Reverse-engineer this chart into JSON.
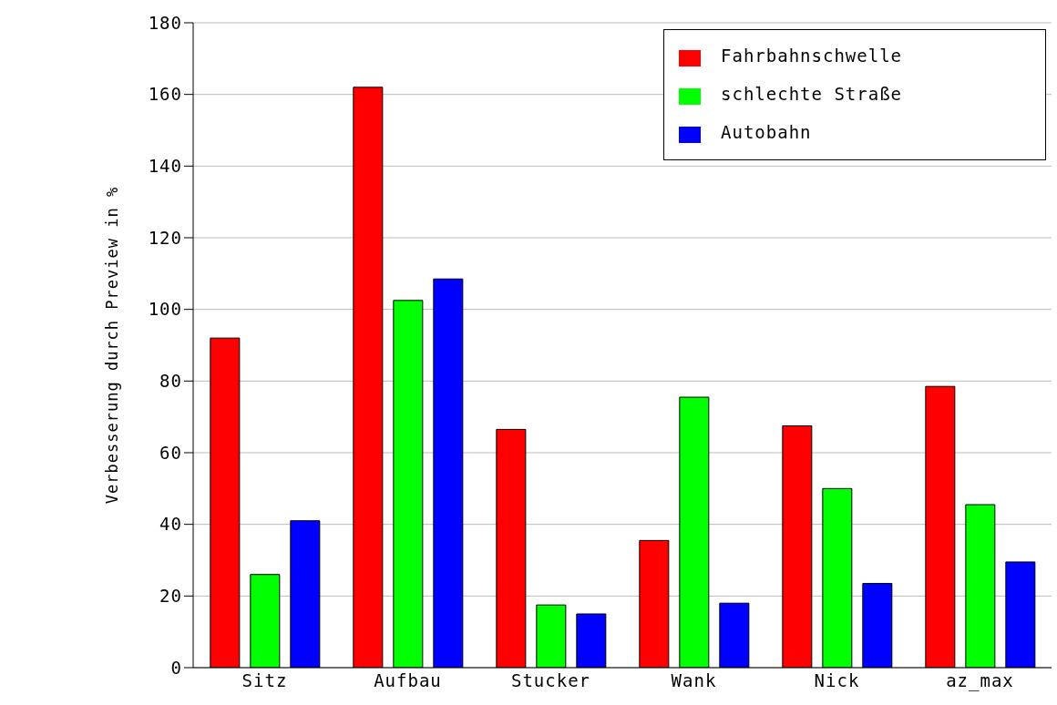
{
  "chart_data": {
    "type": "bar",
    "ylabel": "Verbesserung durch Preview in %",
    "categories": [
      "Sitz",
      "Aufbau",
      "Stucker",
      "Wank",
      "Nick",
      "az_max"
    ],
    "series": [
      {
        "name": "Fahrbahnschwelle",
        "color": "#ff0000",
        "values": [
          92,
          162,
          66.5,
          35.5,
          67.5,
          78.5
        ]
      },
      {
        "name": "schlechte Straße",
        "color": "#00ff00",
        "values": [
          26,
          102.5,
          17.5,
          75.5,
          50,
          45.5
        ]
      },
      {
        "name": "Autobahn",
        "color": "#0000ff",
        "values": [
          41,
          108.5,
          15,
          18,
          23.5,
          29.5
        ]
      }
    ],
    "ylim": [
      0,
      180
    ],
    "yticks": [
      0,
      20,
      40,
      60,
      80,
      100,
      120,
      140,
      160,
      180
    ],
    "grid": "y",
    "legend": "top right"
  }
}
